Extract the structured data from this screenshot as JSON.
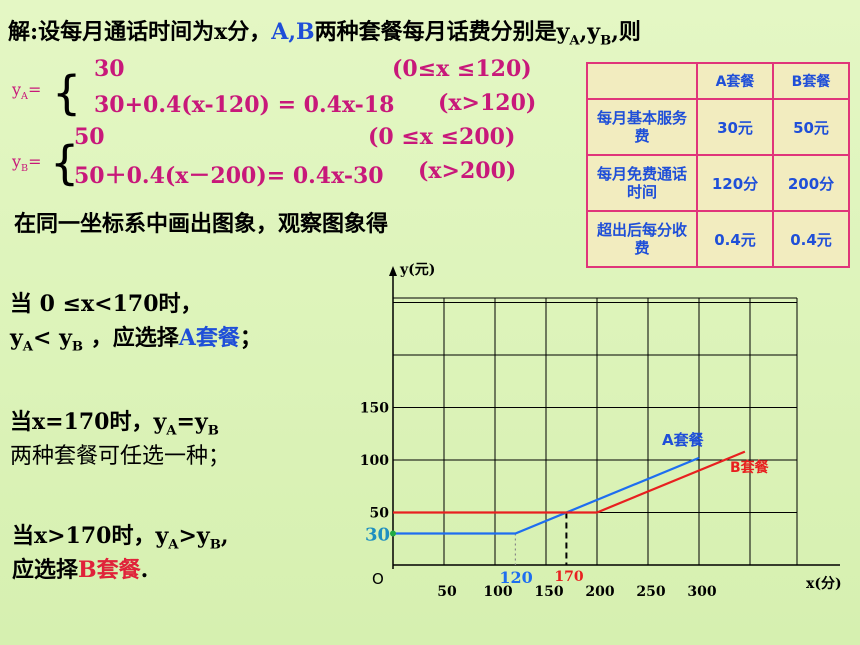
{
  "heading": {
    "prefix": "解:设每月通话时间为x分，",
    "ab": "A,B",
    "mid": "两种套餐每月话费分别是y",
    "subA": "A",
    "comma": ",y",
    "subB": "B",
    "suffix": ",则"
  },
  "eqA": {
    "lhs": "y",
    "lhs_sub": "A",
    "lhs_eq": "=",
    "line1": "30",
    "line1_cond": "(0≤x ≤120)",
    "line2": "30+0.4(x-120)  = 0.4x-18",
    "line2_cond": "(x>120)"
  },
  "eqB": {
    "lhs": "y",
    "lhs_sub": "B",
    "lhs_eq": "=",
    "line1": "50",
    "line1_cond": "(0 ≤x ≤200)",
    "line2": "50＋0.4(x－200)= 0.4x-30",
    "line2_cond": "(x>200)"
  },
  "observe_text": "在同一坐标系中画出图象，观察图象得",
  "table": {
    "headers": [
      "",
      "A套餐",
      "B套餐"
    ],
    "rows": [
      {
        "label": "每月基本服务费",
        "a": "30元",
        "b": "50元"
      },
      {
        "label": "每月免费通话时间",
        "a": "120分",
        "b": "200分"
      },
      {
        "label": "超出后每分收费",
        "a": "0.4元",
        "b": "0.4元"
      }
    ]
  },
  "conclusions": {
    "c1_line1": "当 0 ≤x<170时，",
    "c1_y": "y",
    "c1_subA": "A",
    "c1_lt": "< y",
    "c1_subB": "B",
    "c1_mid": " ，应选择",
    "c1_choice": "A套餐",
    "c1_end": "；",
    "c2_line1_pre": "当x=170时，y",
    "c2_subA": "A",
    "c2_eq": "=y",
    "c2_subB": "B",
    "c2_line2": "两种套餐可任选一种；",
    "c3_line1_pre": "当x>170时，y",
    "c3_subA": "A",
    "c3_gt": ">y",
    "c3_subB": "B",
    "c3_comma": ",",
    "c3_line2_pre": "应选择",
    "c3_choice": "B套餐",
    "c3_end": "."
  },
  "chart_data": {
    "type": "line",
    "xlabel": "x(分)",
    "ylabel": "y(元)",
    "origin_label": "O",
    "x_ticks": [
      50,
      100,
      150,
      200,
      250,
      300
    ],
    "y_ticks": [
      50,
      100,
      150
    ],
    "xlim": [
      0,
      350
    ],
    "ylim": [
      0,
      250
    ],
    "grid": true,
    "series": [
      {
        "name": "A套餐",
        "color": "#1e6ef0",
        "x": [
          0,
          120,
          300
        ],
        "y": [
          30,
          30,
          102
        ]
      },
      {
        "name": "B套餐",
        "color": "#e82020",
        "x": [
          0,
          200,
          345
        ],
        "y": [
          50,
          50,
          108
        ]
      }
    ],
    "annotations": [
      {
        "text": "30",
        "x": 0,
        "y": 30,
        "color": "#1f8fc0"
      },
      {
        "text": "120",
        "x": 120,
        "y": 0,
        "color": "#1e6ef0"
      },
      {
        "text": "170",
        "x": 170,
        "y": 0,
        "color": "#e82020"
      }
    ],
    "guide_lines": [
      {
        "x": 120,
        "y_top": 30,
        "style": "dotted"
      },
      {
        "x": 170,
        "y_top": 50,
        "style": "dashed"
      }
    ]
  }
}
